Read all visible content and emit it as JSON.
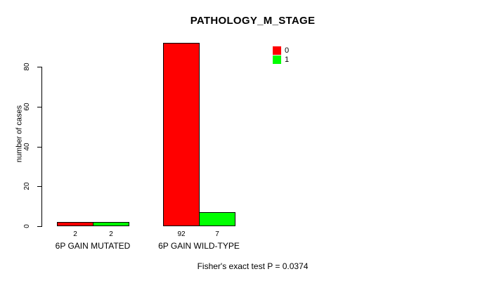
{
  "chart_data": {
    "type": "bar",
    "title": "PATHOLOGY_M_STAGE",
    "ylabel": "number of cases",
    "xlabel": "",
    "categories": [
      "6P GAIN MUTATED",
      "6P GAIN WILD-TYPE"
    ],
    "series": [
      {
        "name": "0",
        "color": "#FF0000",
        "values": [
          2,
          92
        ]
      },
      {
        "name": "1",
        "color": "#00FF00",
        "values": [
          2,
          7
        ]
      }
    ],
    "value_labels": [
      [
        2,
        2
      ],
      [
        92,
        7
      ]
    ],
    "yticks": [
      0,
      20,
      40,
      60,
      80
    ],
    "ylim": [
      0,
      92
    ],
    "grid": false,
    "legend_position": "top-right",
    "annotation": "Fisher's exact test P = 0.0374",
    "colors": {
      "background": "#FFFFFF",
      "axis": "#000000",
      "text": "#000000"
    }
  }
}
